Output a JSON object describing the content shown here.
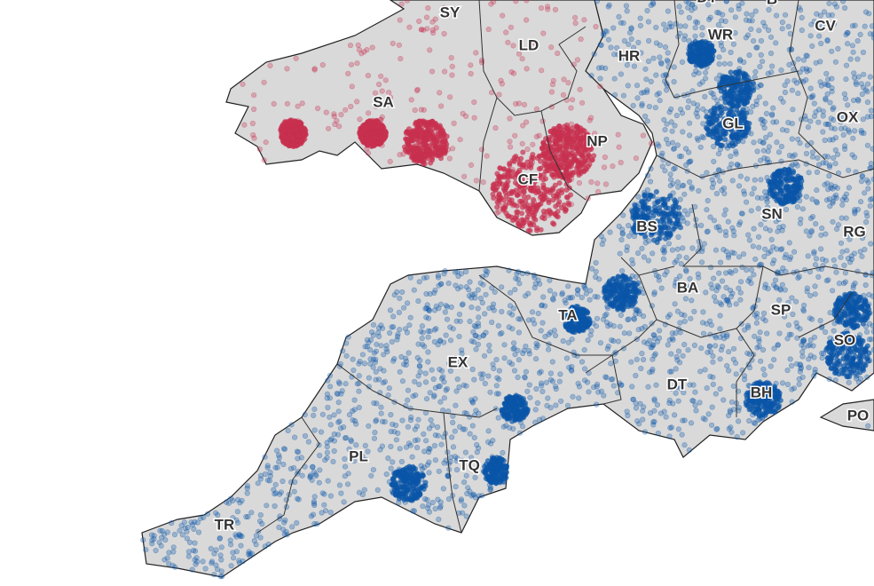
{
  "map": {
    "labels": [
      "SY",
      "LD",
      "HR",
      "WR",
      "CV",
      "DY",
      "B",
      "SA",
      "NP",
      "CF",
      "GL",
      "OX",
      "SN",
      "RG",
      "BS",
      "BA",
      "SP",
      "TA",
      "EX",
      "DT",
      "BH",
      "SO",
      "PO",
      "PL",
      "TQ",
      "TR"
    ]
  }
}
